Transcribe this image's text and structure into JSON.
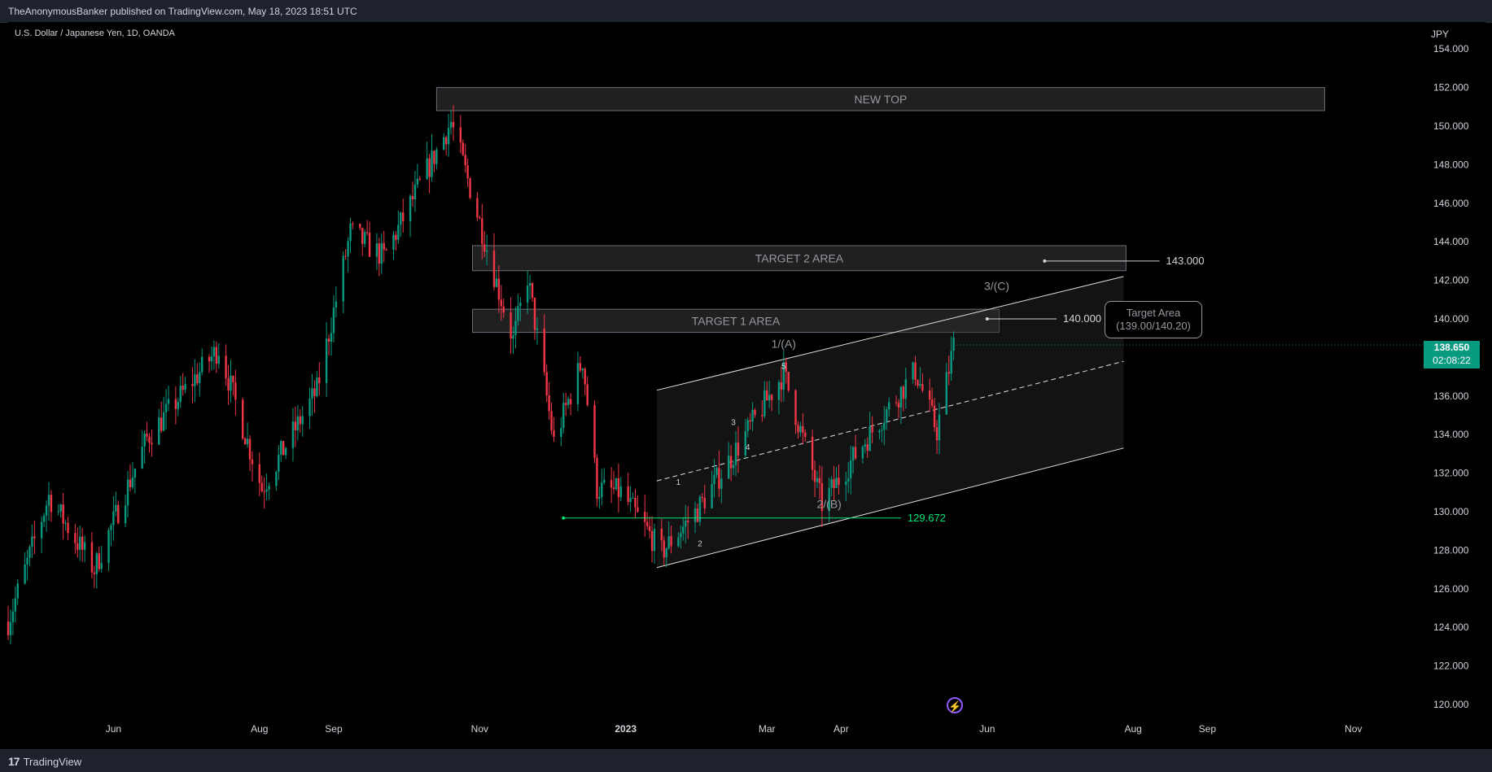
{
  "header": {
    "published": "TheAnonymousBanker published on TradingView.com, May 18, 2023 18:51 UTC"
  },
  "footer": {
    "brand": "TradingView",
    "logo": "tradingview-logo"
  },
  "chart": {
    "symbol": "U.S. Dollar / Japanese Yen, 1D, OANDA",
    "currency": "JPY"
  },
  "last_price": {
    "price": "138.650",
    "countdown": "02:08:22",
    "color": "#089981"
  },
  "callout": {
    "title": "Target Area",
    "range": "(139.00/140.20)"
  },
  "icons": {
    "bolt": "lightning-icon"
  },
  "chart_data": {
    "type": "candlestick",
    "y_axis": {
      "ticks": [
        "154.000",
        "152.000",
        "150.000",
        "148.000",
        "146.000",
        "144.000",
        "142.000",
        "140.000",
        "138.000",
        "136.000",
        "134.000",
        "132.000",
        "130.000",
        "128.000",
        "126.000",
        "124.000",
        "122.000",
        "120.000"
      ],
      "range": [
        119.2,
        155.4
      ],
      "side": "right"
    },
    "x_axis": {
      "ticks": [
        "Jun",
        "Aug",
        "Sep",
        "Nov",
        "2023",
        "Mar",
        "Apr",
        "Jun",
        "Aug",
        "Sep",
        "Nov"
      ],
      "range": [
        "2022-04-18",
        "2023-11-30"
      ]
    },
    "colors": {
      "up": "#089981",
      "down": "#f23645",
      "level": "#00e676",
      "zone": "#3a3a3a",
      "channel": "#e0e0e0"
    },
    "anchors": [
      {
        "date": "2022-04-18",
        "price": 124.3
      },
      {
        "date": "2022-05-05",
        "price": 130.8
      },
      {
        "date": "2022-05-24",
        "price": 127.0
      },
      {
        "date": "2022-06-15",
        "price": 133.8
      },
      {
        "date": "2022-07-15",
        "price": 138.5
      },
      {
        "date": "2022-08-02",
        "price": 131.2
      },
      {
        "date": "2022-08-25",
        "price": 136.3
      },
      {
        "date": "2022-09-08",
        "price": 144.5
      },
      {
        "date": "2022-09-22",
        "price": 143.2
      },
      {
        "date": "2022-10-20",
        "price": 150.2
      },
      {
        "date": "2022-10-28",
        "price": 146.8
      },
      {
        "date": "2022-11-10",
        "price": 141.0
      },
      {
        "date": "2022-11-15",
        "price": 138.9
      },
      {
        "date": "2022-11-21",
        "price": 142.2
      },
      {
        "date": "2022-12-02",
        "price": 133.6
      },
      {
        "date": "2022-12-14",
        "price": 137.9
      },
      {
        "date": "2022-12-20",
        "price": 131.2
      },
      {
        "date": "2022-12-30",
        "price": 131.0
      },
      {
        "date": "2023-01-16",
        "price": 127.9
      },
      {
        "date": "2023-01-31",
        "price": 130.1
      },
      {
        "date": "2023-02-14",
        "price": 132.8
      },
      {
        "date": "2023-03-08",
        "price": 137.2
      },
      {
        "date": "2023-03-24",
        "price": 130.4
      },
      {
        "date": "2023-04-10",
        "price": 133.5
      },
      {
        "date": "2023-05-02",
        "price": 137.3
      },
      {
        "date": "2023-05-11",
        "price": 134.2
      },
      {
        "date": "2023-05-18",
        "price": 138.65
      }
    ],
    "zones": [
      {
        "label": "NEW TOP",
        "from": "2022-10-14",
        "to": "2023-10-20",
        "high": 152.0,
        "low": 150.8
      },
      {
        "label": "TARGET 2 AREA",
        "from": "2022-10-29",
        "to": "2023-07-29",
        "high": 143.8,
        "low": 142.5
      },
      {
        "label": "TARGET 1 AREA",
        "from": "2022-10-29",
        "to": "2023-06-06",
        "high": 140.5,
        "low": 139.3
      }
    ],
    "horizontal_levels": [
      {
        "label": "143.000",
        "price": 143.0,
        "from": "2023-06-25",
        "to": "2023-08-12"
      },
      {
        "label": "140.000",
        "price": 140.0,
        "from": "2023-06-01",
        "to": "2023-06-30"
      },
      {
        "label": "129.672",
        "price": 129.672,
        "from": "2022-12-06",
        "to": "2023-04-26"
      }
    ],
    "channel": {
      "from": "2023-01-14",
      "to": "2023-07-28",
      "upper": [
        136.3,
        142.2
      ],
      "middle": [
        131.6,
        137.8
      ],
      "lower": [
        127.1,
        133.3
      ]
    },
    "wave_labels": [
      {
        "text": "1/(A)",
        "date": "2023-03-08",
        "price": 138.5
      },
      {
        "text": "2/(B)",
        "date": "2023-03-27",
        "price": 130.2
      },
      {
        "text": "3/(C)",
        "date": "2023-06-05",
        "price": 141.5
      },
      {
        "text": "1",
        "date": "2023-01-23",
        "price": 131.4
      },
      {
        "text": "2",
        "date": "2023-02-01",
        "price": 128.2
      },
      {
        "text": "3",
        "date": "2023-02-15",
        "price": 134.5
      },
      {
        "text": "4",
        "date": "2023-02-21",
        "price": 133.2
      },
      {
        "text": "5",
        "date": "2023-03-08",
        "price": 137.4
      }
    ]
  }
}
